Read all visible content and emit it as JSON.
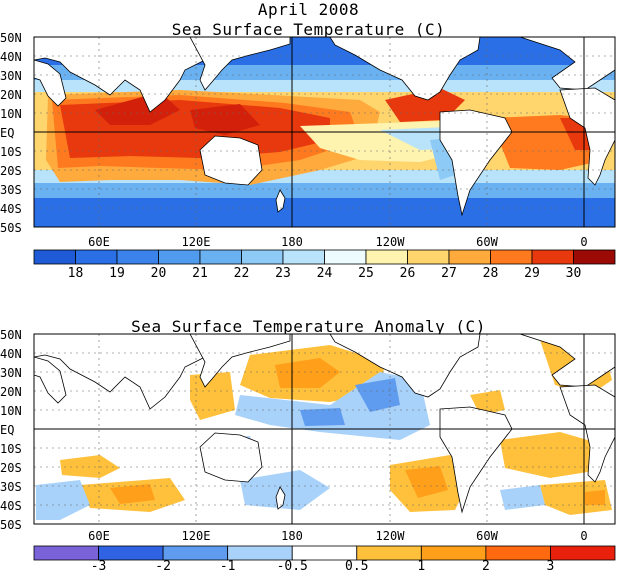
{
  "header": {
    "title": "April 2008",
    "map1_title": "Sea Surface Temperature (C)",
    "map2_title": "Sea Surface Temperature Anomaly (C)"
  },
  "lat_labels": [
    "50N",
    "40N",
    "30N",
    "20N",
    "10N",
    "EQ",
    "10S",
    "20S",
    "30S",
    "40S",
    "50S"
  ],
  "lon_labels": [
    "60E",
    "120E",
    "180",
    "120W",
    "60W",
    "0"
  ],
  "sst_colorbar": {
    "labels": [
      "18",
      "19",
      "20",
      "21",
      "22",
      "23",
      "24",
      "25",
      "26",
      "27",
      "28",
      "29",
      "30"
    ],
    "colors": [
      "#1f5bd6",
      "#2a6fe6",
      "#3b83ea",
      "#519bee",
      "#6ab1f2",
      "#8ecaf6",
      "#b9e3fa",
      "#eefcff",
      "#fff3b0",
      "#ffd66e",
      "#ffaa3c",
      "#ff7a1e",
      "#e8380e",
      "#9c0a06"
    ]
  },
  "anom_colorbar": {
    "labels": [
      "-3",
      "-2",
      "-1",
      "-0.5",
      "0.5",
      "1",
      "2",
      "3"
    ],
    "colors": [
      "#7a63d8",
      "#2f63e3",
      "#5f9bee",
      "#a9d2fa",
      "#ffffff",
      "#ffc03c",
      "#ff9f1a",
      "#ff6a10",
      "#e8200c"
    ]
  }
}
